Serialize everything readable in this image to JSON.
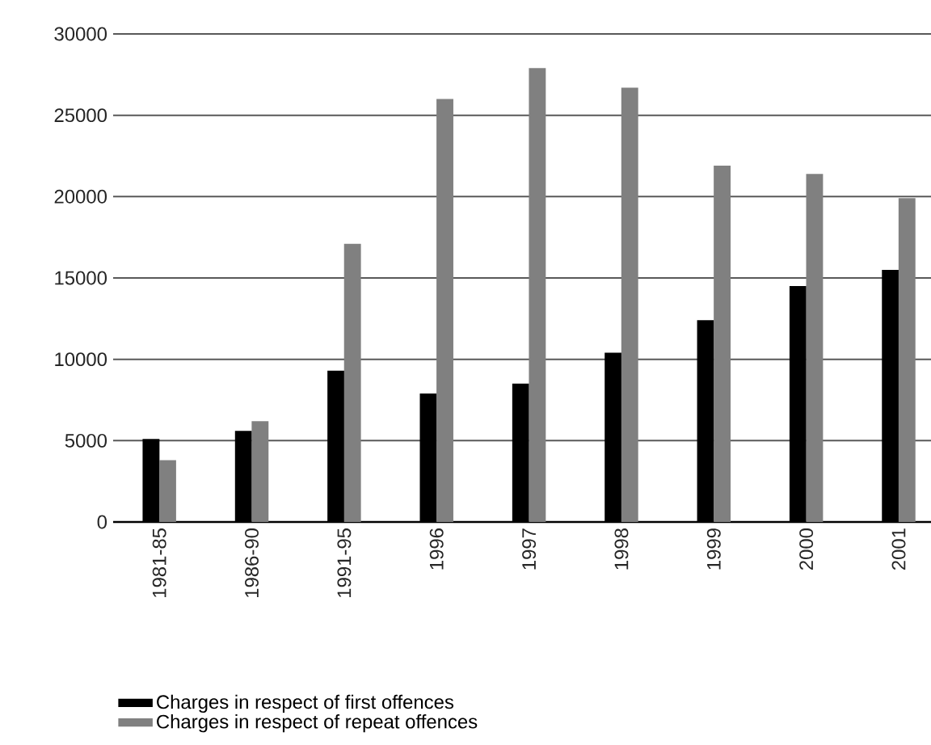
{
  "chart_data": {
    "type": "bar",
    "categories": [
      "1981-85",
      "1986-90",
      "1991-95",
      "1996",
      "1997",
      "1998",
      "1999",
      "2000",
      "2001"
    ],
    "series": [
      {
        "name": "Charges in respect of first offences",
        "color": "#000000",
        "values": [
          5100,
          5600,
          9300,
          7900,
          8500,
          10400,
          12400,
          14500,
          15500
        ]
      },
      {
        "name": "Charges in respect of repeat offences",
        "color": "#808080",
        "values": [
          3800,
          6200,
          17100,
          26000,
          27900,
          26700,
          21900,
          21400,
          19900
        ]
      }
    ],
    "ylim": [
      0,
      30000
    ],
    "yticks": [
      0,
      5000,
      10000,
      15000,
      20000,
      25000,
      30000
    ],
    "grid": "y",
    "legend": "bottom"
  }
}
